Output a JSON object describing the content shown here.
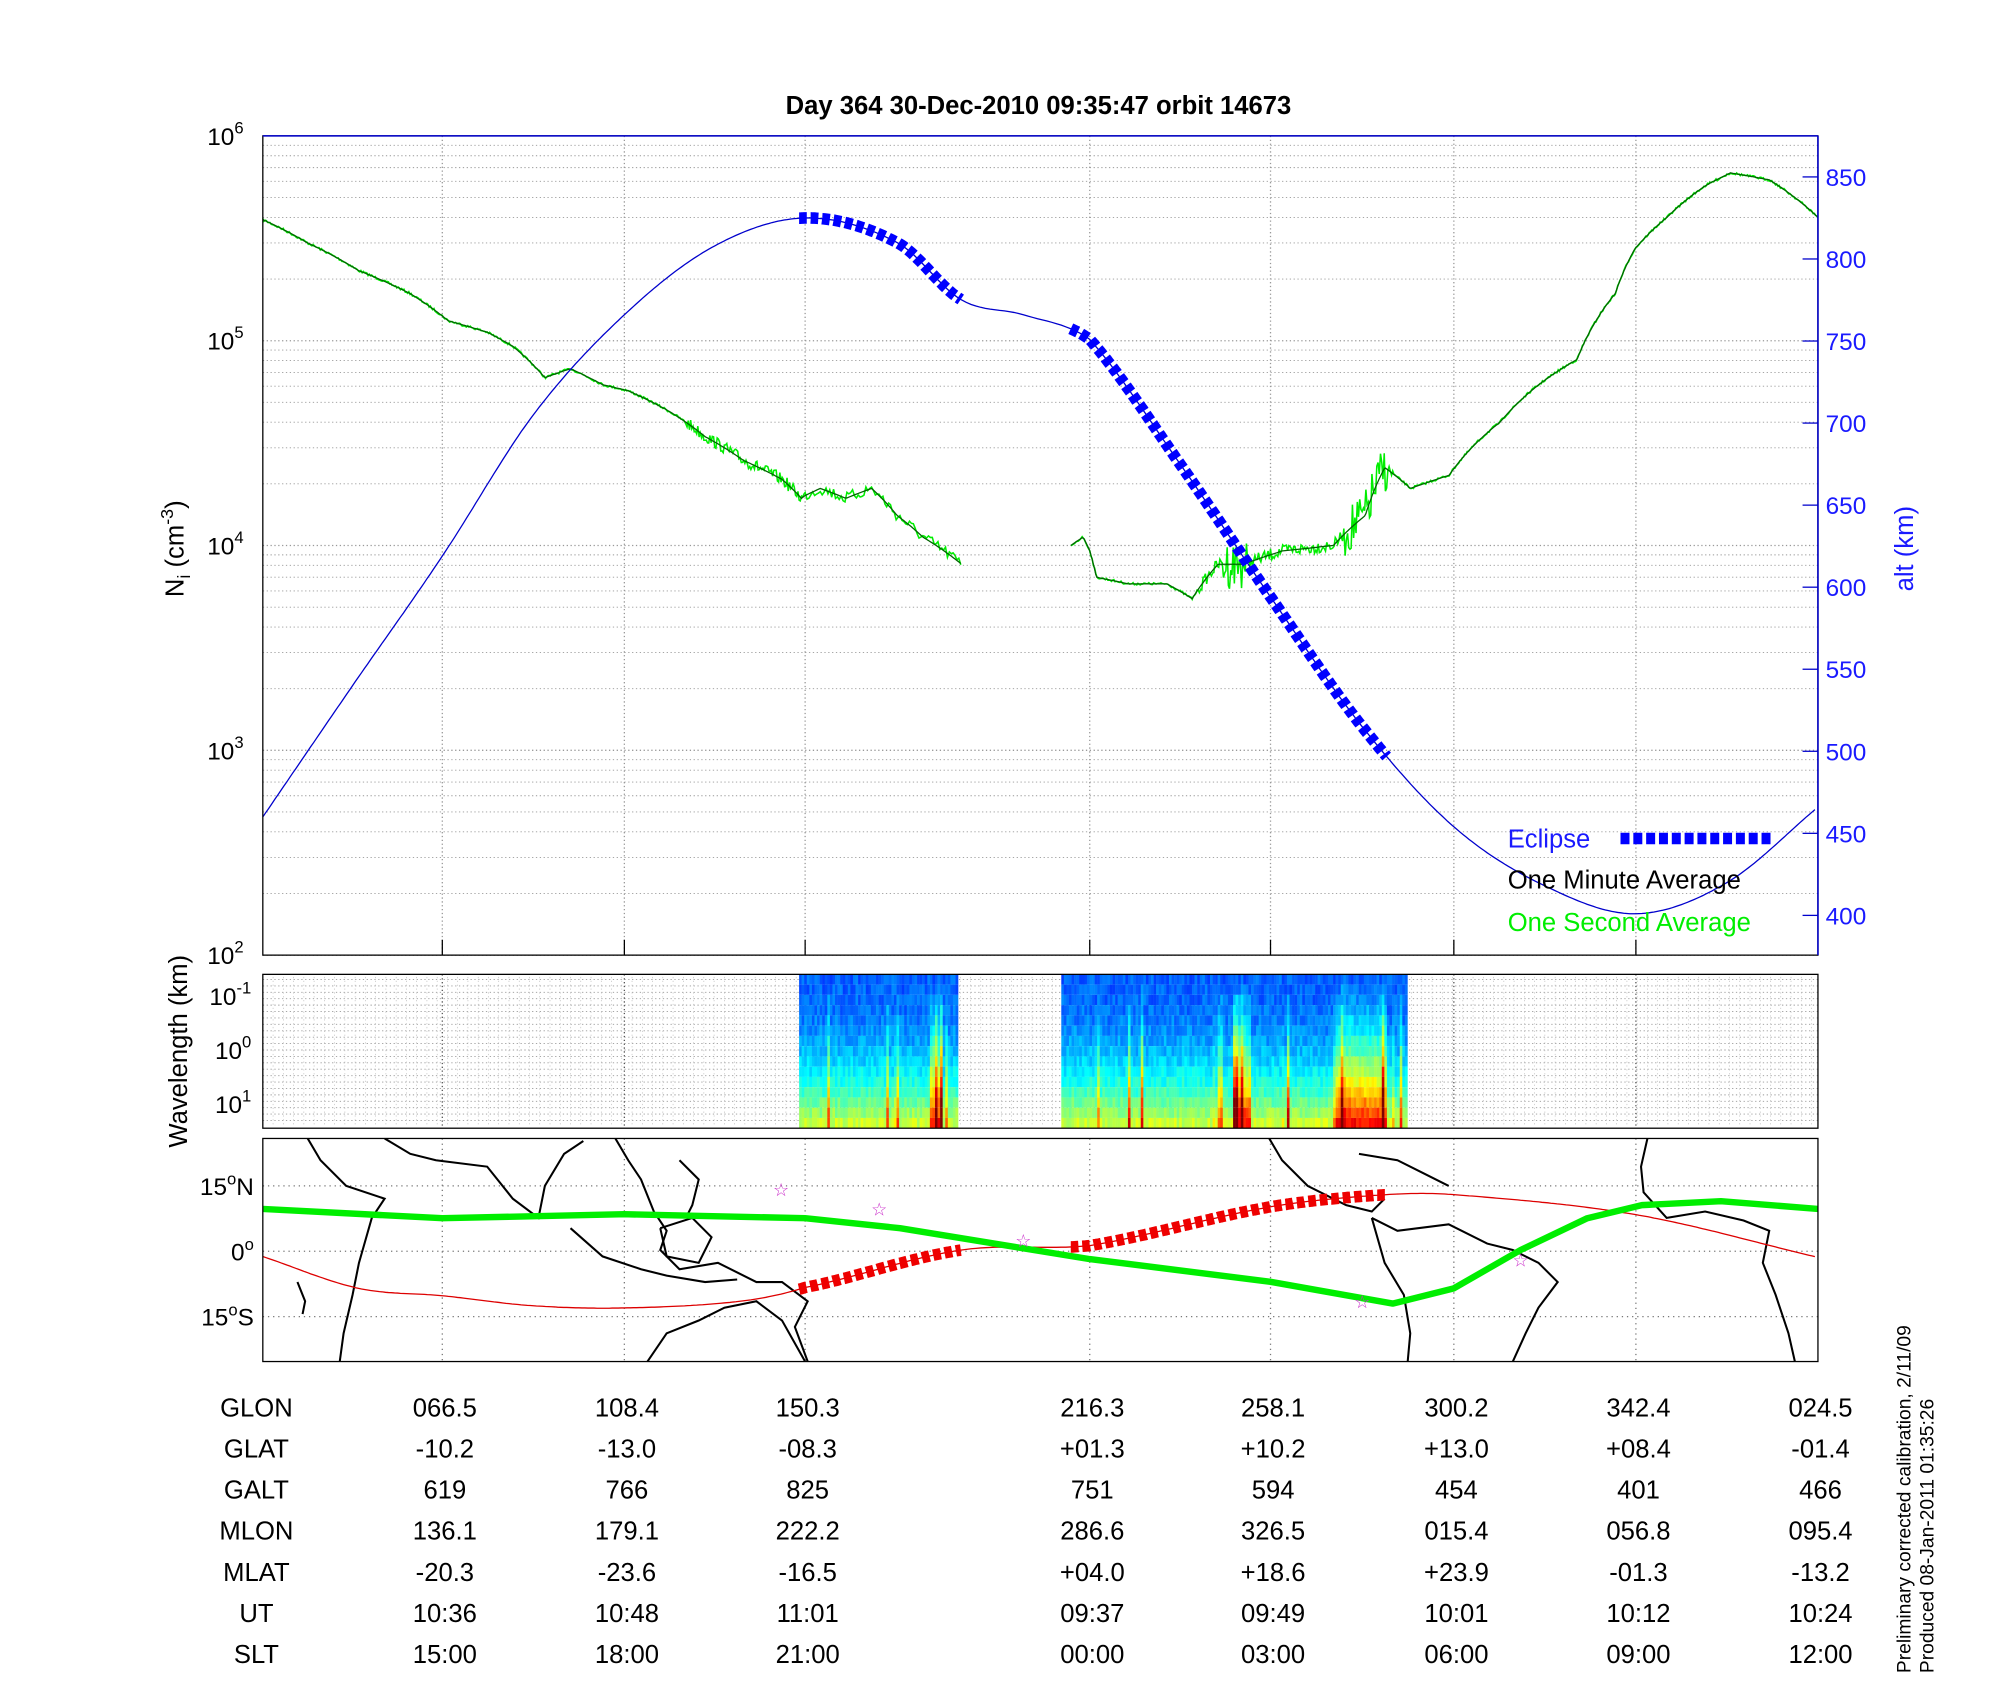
{
  "title": "Day 364  30-Dec-2010 09:35:47   orbit 14673",
  "footer": [
    "Preliminary corrected calibration, 2/11/09",
    "Produced 08-Jan-2011 01:35:26"
  ],
  "colors": {
    "eclipse": "#0000ff",
    "one_minute": "#006400",
    "one_second": "#00ee00",
    "altitude": "#0000cc",
    "ground_track": "#dd0000",
    "mag_equator": "#00ee00",
    "stars": "#cc33cc"
  },
  "chart_data": [
    {
      "type": "line",
      "panel": "density",
      "title": "Day 364  30-Dec-2010 09:35:47   orbit 14673",
      "ylabel": "N_i (cm^-3)",
      "ylabel_main": "N",
      "ylabel_sub": "i",
      "ylabel_unit": " (cm",
      "ylabel_exp": "-3",
      "ylabel_close": ")",
      "y_scale": "log",
      "ylim": [
        100,
        1000000
      ],
      "y_ticks": [
        {
          "base": "10",
          "exp": "2"
        },
        {
          "base": "10",
          "exp": "3"
        },
        {
          "base": "10",
          "exp": "4"
        },
        {
          "base": "10",
          "exp": "5"
        },
        {
          "base": "10",
          "exp": "6"
        }
      ],
      "y2label": "alt (km)",
      "y2lim": [
        375,
        875
      ],
      "y2_ticks": [
        "400",
        "450",
        "500",
        "550",
        "600",
        "650",
        "700",
        "750",
        "800",
        "850"
      ],
      "x_unit": "SLT hours",
      "xlim": [
        12,
        36
      ],
      "grid": true,
      "legend_position": "bottom-right",
      "legend": [
        "Eclipse",
        "One Minute Average",
        "One Second Average"
      ],
      "one_minute_average": [
        [
          12.0,
          390000
        ],
        [
          12.75,
          300000
        ],
        [
          13.6,
          220000
        ],
        [
          14.46,
          170000
        ],
        [
          15.1,
          125000
        ],
        [
          15.74,
          110000
        ],
        [
          16.16,
          94000
        ],
        [
          16.69,
          66000
        ],
        [
          17.11,
          73000
        ],
        [
          17.64,
          61000
        ],
        [
          18.06,
          57000
        ],
        [
          18.7,
          46000
        ],
        [
          19.34,
          34000
        ],
        [
          19.98,
          26000
        ],
        [
          20.62,
          21000
        ],
        [
          20.94,
          17000
        ],
        [
          21.16,
          19000
        ],
        [
          21.43,
          17000
        ],
        [
          21.7,
          19000
        ],
        [
          21.97,
          14000
        ],
        [
          22.24,
          11000
        ],
        [
          22.65,
          8100
        ],
        null,
        [
          23.8,
          10000
        ],
        [
          23.93,
          11000
        ],
        [
          24.11,
          7000
        ],
        [
          24.64,
          6500
        ],
        [
          25.28,
          6500
        ],
        [
          25.7,
          5500
        ],
        [
          26.13,
          8100
        ],
        [
          26.55,
          8100
        ],
        [
          27.19,
          9400
        ],
        [
          28.03,
          10000
        ],
        [
          28.55,
          14000
        ],
        [
          28.87,
          24000
        ],
        [
          29.29,
          19000
        ],
        [
          29.92,
          22000
        ],
        [
          30.76,
          40000
        ],
        [
          31.4,
          61000
        ],
        [
          32.03,
          81000
        ],
        [
          32.66,
          170000
        ],
        [
          32.98,
          280000
        ],
        [
          33.51,
          400000
        ],
        [
          34.14,
          570000
        ],
        [
          34.56,
          660000
        ],
        [
          35.2,
          610000
        ],
        [
          36.0,
          400000
        ]
      ],
      "altitude_km": [
        [
          12,
          460
        ],
        [
          13.5,
          540
        ],
        [
          15,
          619
        ],
        [
          16.5,
          705
        ],
        [
          18,
          766
        ],
        [
          19.5,
          808
        ],
        [
          21,
          825
        ],
        [
          21.97,
          810
        ],
        [
          22.65,
          775
        ],
        [
          23.3,
          766
        ],
        [
          24,
          751
        ],
        [
          25.5,
          675
        ],
        [
          27,
          594
        ],
        [
          28.5,
          515
        ],
        [
          30,
          454
        ],
        [
          31.5,
          418
        ],
        [
          33,
          401
        ],
        [
          34.5,
          420
        ],
        [
          36,
          466
        ]
      ],
      "eclipse_intervals": [
        [
          20.9,
          22.65
        ],
        [
          23.8,
          28.9
        ]
      ]
    },
    {
      "type": "heatmap",
      "panel": "spectrogram",
      "ylabel": "Wavelength (km)",
      "y_scale": "log",
      "y_ticks": [
        {
          "base": "10",
          "exp": "-1"
        },
        {
          "base": "10",
          "exp": "0"
        },
        {
          "base": "10",
          "exp": "1"
        }
      ],
      "colormap": "jet",
      "data_intervals": [
        [
          20.9,
          22.6
        ],
        [
          23.7,
          29.2
        ]
      ]
    },
    {
      "type": "line",
      "panel": "map",
      "y_ticks": [
        {
          "v": "15",
          "deg": "o",
          "h": "N"
        },
        {
          "v": "0",
          "deg": "o",
          "h": ""
        },
        {
          "v": "15",
          "deg": "o",
          "h": "S"
        }
      ],
      "ylim": [
        -26,
        26
      ],
      "ground_track_lat": [
        [
          12,
          -1.2
        ],
        [
          13.6,
          -8.5
        ],
        [
          15,
          -10.2
        ],
        [
          16.5,
          -12.5
        ],
        [
          18,
          -13.0
        ],
        [
          19.9,
          -11.5
        ],
        [
          21,
          -8.3
        ],
        [
          22.65,
          0.3
        ],
        [
          24,
          1.3
        ],
        [
          27,
          10.2
        ],
        [
          28.9,
          13
        ],
        [
          30,
          13.0
        ],
        [
          33,
          8.4
        ],
        [
          36,
          -1.4
        ]
      ],
      "mag_equator_lat": [
        [
          12,
          9.7
        ],
        [
          15,
          7.6
        ],
        [
          18,
          8.5
        ],
        [
          21,
          7.6
        ],
        [
          22,
          5.3
        ],
        [
          24,
          -1.8
        ],
        [
          27,
          -7
        ],
        [
          29.0,
          -12
        ],
        [
          30,
          -8.5
        ],
        [
          31.1,
          0.3
        ],
        [
          32.2,
          7.6
        ],
        [
          33.1,
          10.6
        ],
        [
          34.4,
          11.5
        ],
        [
          36,
          9.7
        ]
      ],
      "eclipse_intervals": [
        [
          20.9,
          22.65
        ],
        [
          23.8,
          28.9
        ]
      ],
      "stars": [
        [
          20.6,
          14.1
        ],
        [
          21.78,
          9.7
        ],
        [
          23.3,
          2.4
        ],
        [
          28.5,
          -11.5
        ],
        [
          31.1,
          -2
        ]
      ]
    }
  ],
  "table": {
    "x_ticks_slt_hours": [
      15,
      18,
      21,
      24,
      27,
      30,
      33,
      36
    ],
    "rows": [
      {
        "label": "GLON",
        "values": [
          "066.5",
          "108.4",
          "150.3",
          "216.3",
          "258.1",
          "300.2",
          "342.4",
          "024.5"
        ]
      },
      {
        "label": "GLAT",
        "values": [
          "-10.2",
          "-13.0",
          "-08.3",
          "+01.3",
          "+10.2",
          "+13.0",
          "+08.4",
          "-01.4"
        ]
      },
      {
        "label": "GALT",
        "values": [
          "619",
          "766",
          "825",
          "751",
          "594",
          "454",
          "401",
          "466"
        ]
      },
      {
        "label": "MLON",
        "values": [
          "136.1",
          "179.1",
          "222.2",
          "286.6",
          "326.5",
          "015.4",
          "056.8",
          "095.4"
        ]
      },
      {
        "label": "MLAT",
        "values": [
          "-20.3",
          "-23.6",
          "-16.5",
          "+04.0",
          "+18.6",
          "+23.9",
          "-01.3",
          "-13.2"
        ]
      },
      {
        "label": "UT",
        "values": [
          "10:36",
          "10:48",
          "11:01",
          "09:37",
          "09:49",
          "10:01",
          "10:12",
          "10:24"
        ]
      },
      {
        "label": "SLT",
        "values": [
          "15:00",
          "18:00",
          "21:00",
          "00:00",
          "03:00",
          "06:00",
          "09:00",
          "12:00"
        ]
      }
    ]
  }
}
